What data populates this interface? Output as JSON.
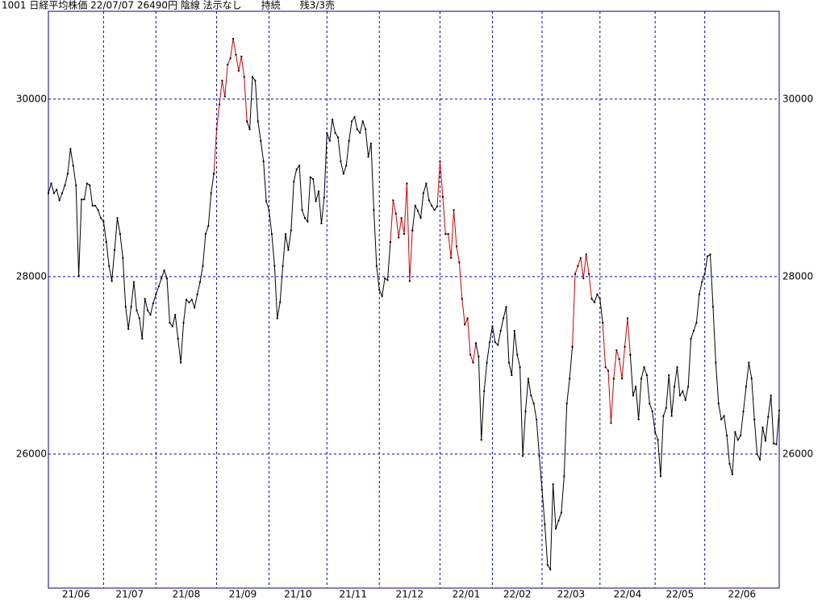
{
  "chart_data": {
    "type": "line",
    "title": "1001 日経平均株価 22/07/07 26490円 陰線 法示なし　　持続　　残3/3売",
    "xlim": [
      0,
      265
    ],
    "xticks": [
      {
        "value": 0,
        "label": "21/06"
      },
      {
        "value": 20,
        "label": "21/07"
      },
      {
        "value": 39,
        "label": "21/08"
      },
      {
        "value": 61,
        "label": "21/09"
      },
      {
        "value": 80,
        "label": "21/10"
      },
      {
        "value": 101,
        "label": "21/11"
      },
      {
        "value": 120,
        "label": "21/12"
      },
      {
        "value": 142,
        "label": "22/01"
      },
      {
        "value": 161,
        "label": "22/02"
      },
      {
        "value": 179,
        "label": "22/03"
      },
      {
        "value": 200,
        "label": "22/04"
      },
      {
        "value": 220,
        "label": "22/05"
      },
      {
        "value": 238,
        "label": "22/06"
      }
    ],
    "ylim": [
      24490,
      30990
    ],
    "yticks": [
      26000,
      28000,
      30000
    ],
    "grid": true,
    "grid_color": "#0000cc",
    "frame_color": "#000080",
    "marker_color": "#000000",
    "series": [
      {
        "color": "#000000",
        "values": [
          28940,
          29050,
          28940,
          28980,
          28860,
          28940,
          29030,
          29160,
          29440,
          29250,
          29030,
          28010,
          28870,
          28870,
          29050,
          29030,
          28800,
          28800,
          28750,
          28660,
          28620,
          28390,
          28120,
          27950,
          28300,
          28660,
          28480,
          28210,
          27660,
          27410,
          27660,
          27940,
          27620,
          27530,
          27300,
          27750,
          27620,
          27570,
          27700,
          27800,
          27890,
          27980,
          28070,
          27980,
          27480,
          27440,
          27570,
          27300,
          27030,
          27480,
          27740,
          27710,
          27740,
          27650,
          27800,
          27940,
          28120,
          28480,
          28570,
          28940,
          29160,
          null,
          null,
          null,
          null,
          null,
          null,
          null,
          null,
          null,
          null,
          null,
          29750,
          29660,
          30250,
          30210,
          29750,
          29530,
          29300,
          28850,
          28750,
          28480,
          28120,
          27530,
          27710,
          28120,
          28480,
          28300,
          28520,
          29070,
          29210,
          29250,
          28750,
          28660,
          28620,
          29120,
          29100,
          28850,
          28960,
          28600,
          28890,
          29620,
          29530,
          29770,
          29620,
          29570,
          29300,
          29160,
          29250,
          29530,
          29750,
          29800,
          29660,
          29620,
          29750,
          29660,
          29350,
          29500,
          28750,
          28120,
          27850,
          27780,
          27980,
          27960,
          28390,
          null,
          null,
          null,
          null,
          null,
          null,
          null,
          28520,
          28800,
          28740,
          28660,
          28940,
          29050,
          28860,
          28800,
          28750,
          28790,
          null,
          null,
          null,
          null,
          null,
          null,
          null,
          null,
          null,
          null,
          null,
          null,
          null,
          27250,
          27100,
          26160,
          26710,
          27030,
          27260,
          27440,
          27260,
          27230,
          27390,
          27530,
          27660,
          27030,
          26890,
          27390,
          27120,
          26980,
          25980,
          26480,
          26850,
          26660,
          26570,
          26390,
          25980,
          25600,
          25210,
          24750,
          24700,
          25660,
          25160,
          25250,
          25340,
          25750,
          26570,
          26850,
          27210,
          null,
          null,
          null,
          null,
          null,
          null,
          27750,
          27710,
          27800,
          27750,
          27480,
          null,
          null,
          null,
          null,
          null,
          null,
          null,
          null,
          null,
          27120,
          26660,
          26760,
          26390,
          26850,
          26980,
          26890,
          26570,
          26480,
          26250,
          26160,
          25750,
          26430,
          26520,
          26890,
          26430,
          26760,
          26980,
          26660,
          26710,
          26610,
          26760,
          27300,
          27390,
          27480,
          27800,
          27940,
          28030,
          28230,
          28250,
          27660,
          27030,
          26570,
          26390,
          26430,
          26210,
          25890,
          25770,
          26250,
          26160,
          26210,
          26480,
          26760,
          27030,
          26850,
          26390,
          26000,
          25940,
          26300,
          26150,
          26420,
          26660,
          26120,
          26110,
          26490
        ]
      },
      {
        "color": "#cc0000",
        "values": [
          null,
          null,
          null,
          null,
          null,
          null,
          null,
          null,
          null,
          null,
          null,
          null,
          null,
          null,
          null,
          null,
          null,
          null,
          null,
          null,
          null,
          null,
          null,
          null,
          null,
          null,
          null,
          null,
          null,
          null,
          null,
          null,
          null,
          null,
          null,
          null,
          null,
          null,
          null,
          null,
          null,
          null,
          null,
          null,
          null,
          null,
          null,
          null,
          null,
          null,
          null,
          null,
          null,
          null,
          null,
          null,
          null,
          null,
          null,
          null,
          29160,
          29660,
          29940,
          30210,
          30030,
          30390,
          30460,
          30680,
          30500,
          30320,
          30480,
          30250,
          29750,
          null,
          null,
          null,
          null,
          null,
          null,
          null,
          null,
          null,
          null,
          null,
          null,
          null,
          null,
          null,
          null,
          null,
          null,
          null,
          null,
          null,
          null,
          null,
          null,
          null,
          null,
          null,
          null,
          null,
          null,
          null,
          null,
          null,
          null,
          null,
          null,
          null,
          null,
          null,
          null,
          null,
          null,
          null,
          null,
          null,
          null,
          null,
          null,
          null,
          null,
          null,
          28390,
          28860,
          28710,
          28440,
          28660,
          28480,
          29050,
          27950,
          28520,
          null,
          null,
          null,
          null,
          null,
          null,
          null,
          null,
          28790,
          29300,
          28900,
          28480,
          28480,
          28210,
          28750,
          28340,
          28160,
          27750,
          27460,
          27530,
          27120,
          27030,
          27250,
          null,
          null,
          null,
          null,
          null,
          null,
          null,
          null,
          null,
          null,
          null,
          null,
          null,
          null,
          null,
          null,
          null,
          null,
          null,
          null,
          null,
          null,
          null,
          null,
          null,
          null,
          null,
          null,
          null,
          null,
          null,
          null,
          null,
          null,
          27210,
          28030,
          28120,
          28210,
          27980,
          28250,
          28030,
          27750,
          null,
          null,
          null,
          27480,
          26980,
          26940,
          26350,
          26850,
          27170,
          27070,
          26850,
          27210,
          27530,
          27120,
          null,
          null,
          null,
          null,
          null,
          null,
          null,
          null,
          null,
          null,
          null,
          null,
          null,
          null,
          null,
          null,
          null,
          null,
          null,
          null,
          null,
          null,
          null,
          null,
          null,
          null,
          null,
          null,
          null,
          null,
          null,
          null,
          null,
          null,
          null,
          null,
          null,
          null,
          null,
          null,
          null,
          null,
          null,
          null,
          null,
          null,
          null,
          null,
          null,
          null,
          null,
          null,
          null,
          null
        ]
      }
    ]
  }
}
